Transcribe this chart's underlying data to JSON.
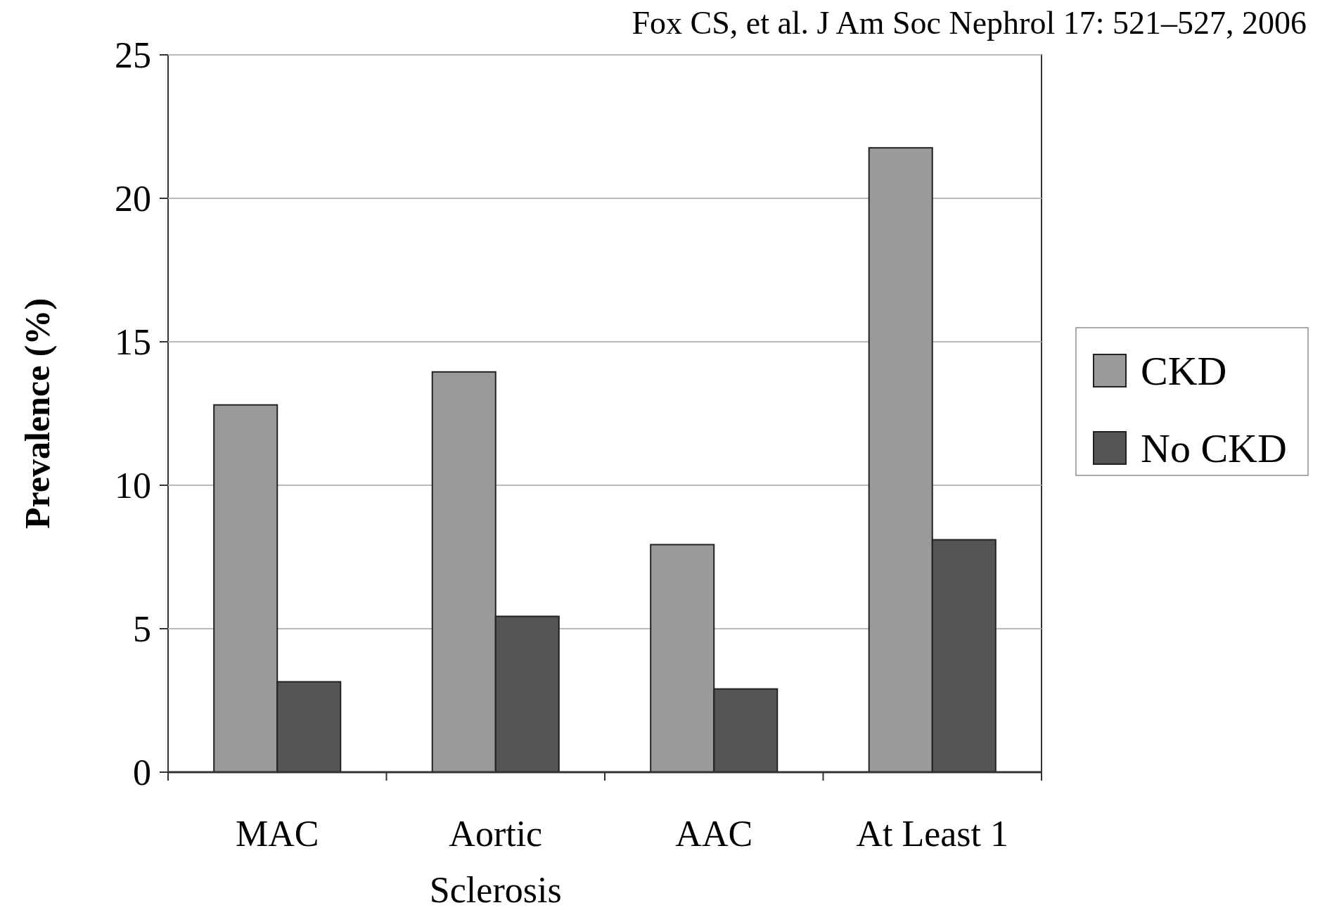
{
  "chart_data": {
    "type": "bar",
    "ylabel": "Prevalence (%)",
    "annotations": [
      "Fox CS, et al. J Am Soc Nephrol 17: 521–527, 2006"
    ],
    "categories": [
      "MAC",
      "Aortic\nSclerosis",
      "AAC",
      "At Least 1"
    ],
    "series": [
      {
        "name": "CKD",
        "color": "#9a9a9a",
        "values": [
          12.8,
          13.95,
          7.93,
          21.76
        ]
      },
      {
        "name": "No CKD",
        "color": "#555555",
        "values": [
          3.15,
          5.43,
          2.9,
          8.1
        ]
      }
    ],
    "ylim": [
      0,
      25
    ],
    "yticks": [
      0,
      5,
      10,
      15,
      20,
      25
    ],
    "grid": "y",
    "legend": "right"
  }
}
